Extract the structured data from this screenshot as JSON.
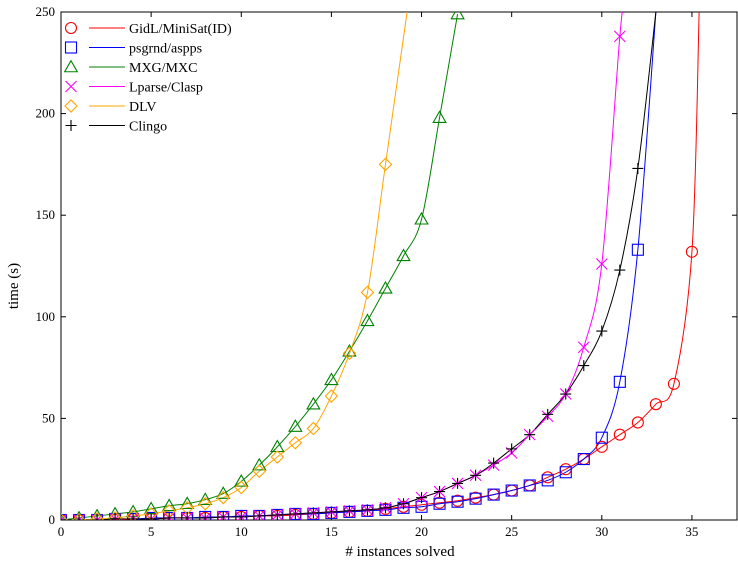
{
  "chart_data": {
    "type": "line",
    "title": "",
    "xlabel": "# instances solved",
    "ylabel": "time (s)",
    "xlim": [
      0,
      37.5
    ],
    "ylim": [
      0,
      250
    ],
    "x_ticks": [
      0,
      5,
      10,
      15,
      20,
      25,
      30,
      35
    ],
    "y_ticks": [
      0,
      50,
      100,
      150,
      200,
      250
    ],
    "grid": false,
    "legend_position": "top-left",
    "series": [
      {
        "name": "GidL/MiniSat(ID)",
        "color": "#ff0000",
        "marker": "circle",
        "x": [
          0,
          1,
          2,
          3,
          4,
          5,
          6,
          7,
          8,
          9,
          10,
          11,
          12,
          13,
          14,
          15,
          16,
          17,
          18,
          19,
          20,
          21,
          22,
          23,
          24,
          25,
          26,
          27,
          28,
          29,
          30,
          31,
          32,
          33,
          34,
          35
        ],
        "y": [
          0,
          0,
          0,
          0,
          0.5,
          0.5,
          1,
          1,
          1,
          1.5,
          1.5,
          2,
          2,
          2.5,
          3,
          3.5,
          4,
          4.5,
          5.5,
          6.5,
          7.5,
          8.5,
          9.5,
          11,
          12.5,
          14.5,
          17,
          21,
          25,
          30,
          36,
          42,
          48,
          57,
          67,
          132
        ],
        "tail": [
          [
            35.4,
            250
          ]
        ]
      },
      {
        "name": "psgrnd/aspps",
        "color": "#0000ff",
        "marker": "square",
        "x": [
          0,
          1,
          2,
          3,
          4,
          5,
          6,
          7,
          8,
          9,
          10,
          11,
          12,
          13,
          14,
          15,
          16,
          17,
          18,
          19,
          20,
          21,
          22,
          23,
          24,
          25,
          26,
          27,
          28,
          29,
          30,
          31,
          32
        ],
        "y": [
          0,
          0,
          0,
          0.5,
          0.5,
          1,
          1,
          1,
          1.5,
          1.5,
          2,
          2,
          2.5,
          3,
          3,
          3.5,
          4,
          4.5,
          5,
          6,
          6.5,
          8,
          9,
          10.5,
          12.5,
          14.5,
          17,
          19.5,
          23.5,
          30,
          40.5,
          68,
          133
        ],
        "tail": [
          [
            33,
            250
          ]
        ]
      },
      {
        "name": "MXG/MXC",
        "color": "#008000",
        "marker": "triangle",
        "x": [
          0,
          1,
          2,
          3,
          4,
          5,
          6,
          7,
          8,
          9,
          10,
          11,
          12,
          13,
          14,
          15,
          16,
          17,
          18,
          19,
          20,
          21,
          22
        ],
        "y": [
          0,
          1,
          2,
          3,
          4,
          5.5,
          7,
          8,
          10,
          13,
          19,
          27,
          36,
          46,
          57,
          69,
          83,
          98,
          114,
          130,
          148,
          198,
          249
        ],
        "tail": []
      },
      {
        "name": "Lparse/Clasp",
        "color": "#ff00ff",
        "marker": "x",
        "x": [
          0,
          1,
          2,
          3,
          4,
          5,
          6,
          7,
          8,
          9,
          10,
          11,
          12,
          13,
          14,
          15,
          16,
          17,
          18,
          19,
          20,
          21,
          22,
          23,
          24,
          25,
          26,
          27,
          28,
          29,
          30,
          31
        ],
        "y": [
          0,
          0,
          0,
          0.5,
          0.5,
          0.5,
          1,
          1,
          1,
          1.5,
          1.5,
          2,
          2.5,
          3,
          3.5,
          4,
          4.5,
          5,
          6,
          8,
          11,
          14,
          18,
          22,
          27,
          33,
          42,
          51,
          62,
          85,
          126,
          238
        ],
        "tail": [
          [
            31.2,
            250
          ]
        ]
      },
      {
        "name": "DLV",
        "color": "#ffa500",
        "marker": "diamond",
        "x": [
          0,
          1,
          2,
          3,
          4,
          5,
          6,
          7,
          8,
          9,
          10,
          11,
          12,
          13,
          14,
          15,
          16,
          17,
          18
        ],
        "y": [
          0,
          0,
          0.5,
          1,
          2,
          3,
          4.5,
          6,
          8,
          11,
          16,
          24,
          31,
          38,
          45,
          61,
          82,
          112,
          175
        ],
        "tail": [
          [
            19.2,
            250
          ]
        ]
      },
      {
        "name": "Clingo",
        "color": "#000000",
        "marker": "plus",
        "x": [
          0,
          1,
          2,
          3,
          4,
          5,
          6,
          7,
          8,
          9,
          10,
          11,
          12,
          13,
          14,
          15,
          16,
          17,
          18,
          19,
          20,
          21,
          22,
          23,
          24,
          25,
          26,
          27,
          28,
          29,
          30,
          31,
          32
        ],
        "y": [
          0,
          0,
          0,
          0.5,
          0.5,
          0.5,
          1,
          1,
          1,
          1.5,
          1.5,
          2,
          2.5,
          3,
          3.5,
          4,
          4.5,
          5,
          6,
          8,
          11,
          14,
          18,
          22,
          28,
          35,
          42,
          52,
          62,
          76,
          93,
          123,
          173
        ],
        "tail": [
          [
            33,
            250
          ]
        ]
      }
    ]
  }
}
